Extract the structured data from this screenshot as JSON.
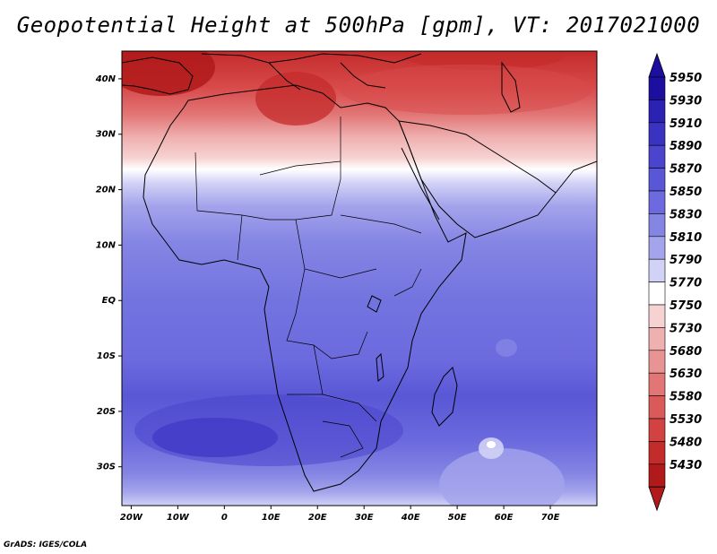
{
  "title": "Geopotential Height at 500hPa [gpm], VT: 2017021000",
  "credit": "GrADS: IGES/COLA",
  "map": {
    "lon_ticks": [
      "20W",
      "10W",
      "0",
      "10E",
      "20E",
      "30E",
      "40E",
      "50E",
      "60E",
      "70E"
    ],
    "lat_ticks": [
      "40N",
      "30N",
      "20N",
      "10N",
      "EQ",
      "10S",
      "20S",
      "30S"
    ],
    "lon_range": [
      -22,
      80
    ],
    "lat_range": [
      -37,
      45
    ]
  },
  "colorbar": {
    "levels": [
      "5950",
      "5930",
      "5910",
      "5890",
      "5870",
      "5850",
      "5830",
      "5810",
      "5790",
      "5770",
      "5750",
      "5730",
      "5680",
      "5630",
      "5580",
      "5530",
      "5480",
      "5430"
    ],
    "colors": [
      "#1c0fa0",
      "#2b22b4",
      "#3a33c2",
      "#4a45cc",
      "#5a57d6",
      "#6c6ade",
      "#8585e4",
      "#a4a4ec",
      "#d2d2f6",
      "#ffffff",
      "#f7d2d2",
      "#efb0b0",
      "#e99494",
      "#e27676",
      "#da5a5a",
      "#d24242",
      "#c42b2b",
      "#b01a1a"
    ]
  }
}
